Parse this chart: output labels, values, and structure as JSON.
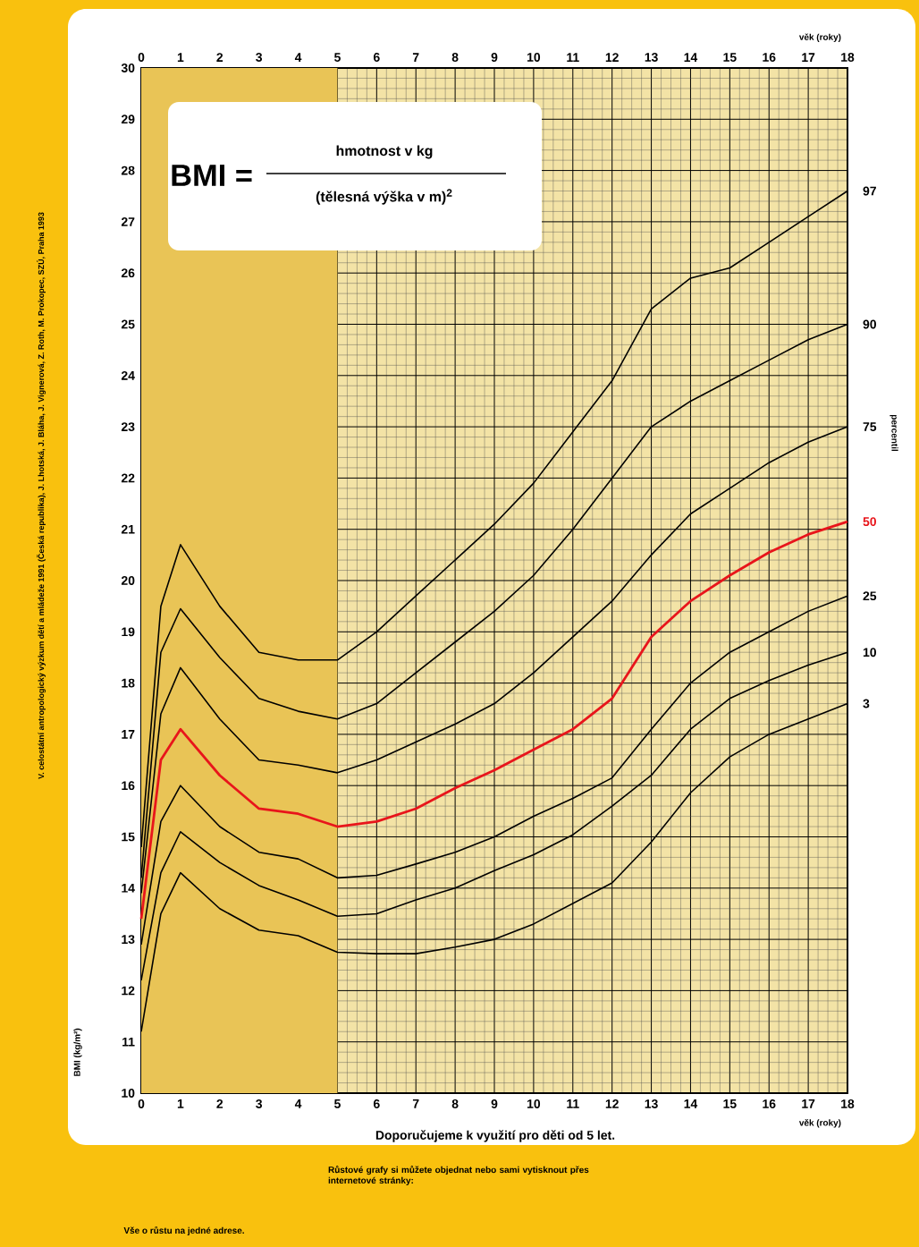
{
  "chart_data": {
    "type": "line",
    "xlabel": "věk (roky)",
    "x2label": "věk (roky)",
    "ylabel": "BMI (kg/m²)",
    "x": [
      0,
      0.5,
      1,
      2,
      3,
      4,
      5,
      6,
      7,
      8,
      9,
      10,
      11,
      12,
      13,
      14,
      15,
      16,
      17,
      18
    ],
    "series": [
      {
        "name": "97",
        "color": "#000000",
        "values": [
          14.8,
          19.5,
          20.7,
          19.5,
          18.6,
          18.45,
          18.45,
          19.0,
          19.7,
          20.4,
          21.1,
          21.9,
          22.9,
          23.9,
          25.3,
          25.9,
          26.1,
          26.6,
          27.1,
          27.6
        ]
      },
      {
        "name": "90",
        "color": "#000000",
        "values": [
          14.2,
          18.6,
          19.45,
          18.5,
          17.7,
          17.45,
          17.3,
          17.6,
          18.2,
          18.8,
          19.4,
          20.1,
          21.0,
          22.0,
          23.0,
          23.5,
          23.9,
          24.3,
          24.7,
          25.0
        ]
      },
      {
        "name": "75",
        "color": "#000000",
        "values": [
          13.9,
          17.4,
          18.3,
          17.3,
          16.5,
          16.4,
          16.25,
          16.5,
          16.85,
          17.2,
          17.6,
          18.2,
          18.9,
          19.6,
          20.5,
          21.3,
          21.8,
          22.3,
          22.7,
          23.0
        ]
      },
      {
        "name": "50",
        "color": "#e8151b",
        "values": [
          13.4,
          16.5,
          17.1,
          16.2,
          15.55,
          15.45,
          15.2,
          15.3,
          15.55,
          15.95,
          16.3,
          16.7,
          17.1,
          17.7,
          18.9,
          19.6,
          20.1,
          20.55,
          20.9,
          21.15
        ]
      },
      {
        "name": "25",
        "color": "#000000",
        "values": [
          12.9,
          15.3,
          16.0,
          15.2,
          14.7,
          14.57,
          14.2,
          14.25,
          14.47,
          14.7,
          15.0,
          15.4,
          15.75,
          16.15,
          17.1,
          18.0,
          18.6,
          19.0,
          19.4,
          19.7
        ]
      },
      {
        "name": "10",
        "color": "#000000",
        "values": [
          12.2,
          14.3,
          15.1,
          14.5,
          14.05,
          13.77,
          13.45,
          13.5,
          13.77,
          14.0,
          14.34,
          14.65,
          15.04,
          15.6,
          16.2,
          17.1,
          17.7,
          18.05,
          18.35,
          18.6
        ]
      },
      {
        "name": "3",
        "color": "#000000",
        "values": [
          11.2,
          13.5,
          14.3,
          13.6,
          13.18,
          13.07,
          12.75,
          12.72,
          12.72,
          12.85,
          13.0,
          13.3,
          13.7,
          14.1,
          14.9,
          15.86,
          16.56,
          17.0,
          17.3,
          17.6
        ]
      }
    ],
    "xlim": [
      0,
      18
    ],
    "xticks": [
      0,
      1,
      2,
      3,
      4,
      5,
      6,
      7,
      8,
      9,
      10,
      11,
      12,
      13,
      14,
      15,
      16,
      17,
      18
    ],
    "x2lim": [
      0,
      18
    ],
    "x2ticks": [
      0,
      1,
      2,
      3,
      4,
      5,
      6,
      7,
      8,
      9,
      10,
      11,
      12,
      13,
      14,
      15,
      16,
      17,
      18
    ],
    "ylim": [
      10,
      30
    ],
    "yticks": [
      10,
      11,
      12,
      13,
      14,
      15,
      16,
      17,
      18,
      19,
      20,
      21,
      22,
      23,
      24,
      25,
      26,
      27,
      28,
      29,
      30
    ],
    "grid": true,
    "legend": false,
    "bands": [
      {
        "axis": "x",
        "from": 0,
        "to": 5,
        "color": "#e9c456"
      }
    ],
    "annotations": [
      "BMI =",
      "hmotnost v kg",
      "(tělesná výška v m)$^{2}$",
      "percentil",
      "Doporučujeme k využití pro děti od 5 let.",
      "V. celostátní antropologický výzkum dětí a mládeže 1991 (Česká republika), J. Lhotská, J. Bláha, J. Vignerová, Z. Roth, M. Prokopec, SZÚ, Praha 1993",
      "Vše o růstu na jedné adrese.",
      "Růstové grafy si můžete objednat nebo sami vytisknout přes internetové stránky:"
    ]
  }
}
